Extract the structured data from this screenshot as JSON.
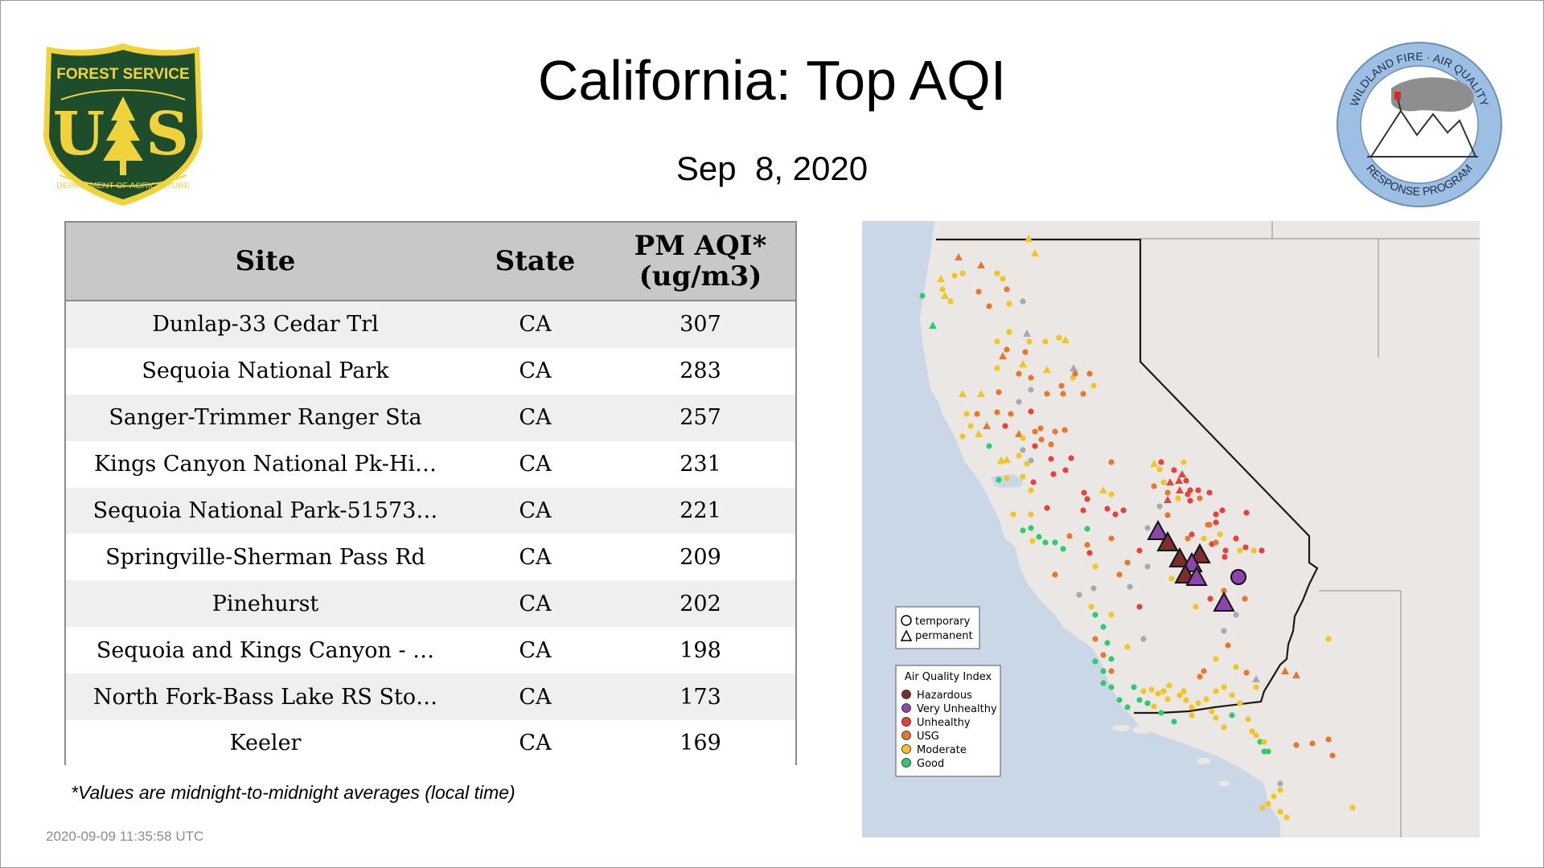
{
  "header": {
    "title": "California: Top AQI",
    "date": "Sep  8, 2020"
  },
  "logos": {
    "forest_service": {
      "top_text": "FOREST SERVICE",
      "letters_left": "U",
      "letters_right": "S",
      "bottom_text": "DEPARTMENT OF AGRICULTURE",
      "icon": "pine-tree-icon",
      "colors": {
        "shield_fill": "#1e4d2b",
        "accent": "#f0d23a"
      }
    },
    "wildland_fire": {
      "ring_text_top": "WILDLAND FIRE · AIR QUALITY",
      "ring_text_bottom": "RESPONSE PROGRAM",
      "icon": "mountain-smoke-icon",
      "colors": {
        "ring": "#9cbfe3"
      }
    }
  },
  "table": {
    "headers": {
      "site": "Site",
      "state": "State",
      "pm_line1": "PM AQI*",
      "pm_line2": "(ug/m3)"
    },
    "rows": [
      {
        "site": "Dunlap-33 Cedar Trl",
        "state": "CA",
        "value": "307"
      },
      {
        "site": "Sequoia National Park",
        "state": "CA",
        "value": "283"
      },
      {
        "site": "Sanger-Trimmer Ranger Sta",
        "state": "CA",
        "value": "257"
      },
      {
        "site": "Kings Canyon National Pk-Hi…",
        "state": "CA",
        "value": "231"
      },
      {
        "site": "Sequoia National Park-51573…",
        "state": "CA",
        "value": "221"
      },
      {
        "site": "Springville-Sherman Pass Rd",
        "state": "CA",
        "value": "209"
      },
      {
        "site": "Pinehurst",
        "state": "CA",
        "value": "202"
      },
      {
        "site": "Sequoia and Kings Canyon - …",
        "state": "CA",
        "value": "198"
      },
      {
        "site": "North Fork-Bass Lake RS Sto…",
        "state": "CA",
        "value": "173"
      },
      {
        "site": "Keeler",
        "state": "CA",
        "value": "169"
      }
    ]
  },
  "footnote": "*Values are midnight-to-midnight averages (local time)",
  "timestamp": "2020-09-09 11:35:58 UTC",
  "map": {
    "shape_legend": {
      "temporary": "temporary",
      "permanent": "permanent"
    },
    "aqi_legend": {
      "title": "Air Quality Index",
      "items": [
        {
          "label": "Hazardous",
          "color": "#7e2d2d"
        },
        {
          "label": "Very Unhealthy",
          "color": "#8e44ad"
        },
        {
          "label": "Unhealthy",
          "color": "#e8403a"
        },
        {
          "label": "USG",
          "color": "#e8772a"
        },
        {
          "label": "Moderate",
          "color": "#f2c521"
        },
        {
          "label": "Good",
          "color": "#2ecc71"
        }
      ]
    },
    "colors": {
      "ocean": "#c9d7e6",
      "land": "#ebe7e4",
      "border": "#1a1a1a",
      "unknown": "#a8a8b0"
    },
    "hazard_sites": [
      {
        "shape": "triangle",
        "category": "Very Unhealthy"
      },
      {
        "shape": "triangle",
        "category": "Hazardous"
      },
      {
        "shape": "triangle",
        "category": "Hazardous"
      },
      {
        "shape": "triangle",
        "category": "Hazardous"
      },
      {
        "shape": "triangle",
        "category": "Very Unhealthy"
      },
      {
        "shape": "triangle",
        "category": "Hazardous"
      },
      {
        "shape": "triangle",
        "category": "Very Unhealthy"
      },
      {
        "shape": "circle",
        "category": "Very Unhealthy"
      },
      {
        "shape": "triangle",
        "category": "Very Unhealthy"
      }
    ]
  }
}
